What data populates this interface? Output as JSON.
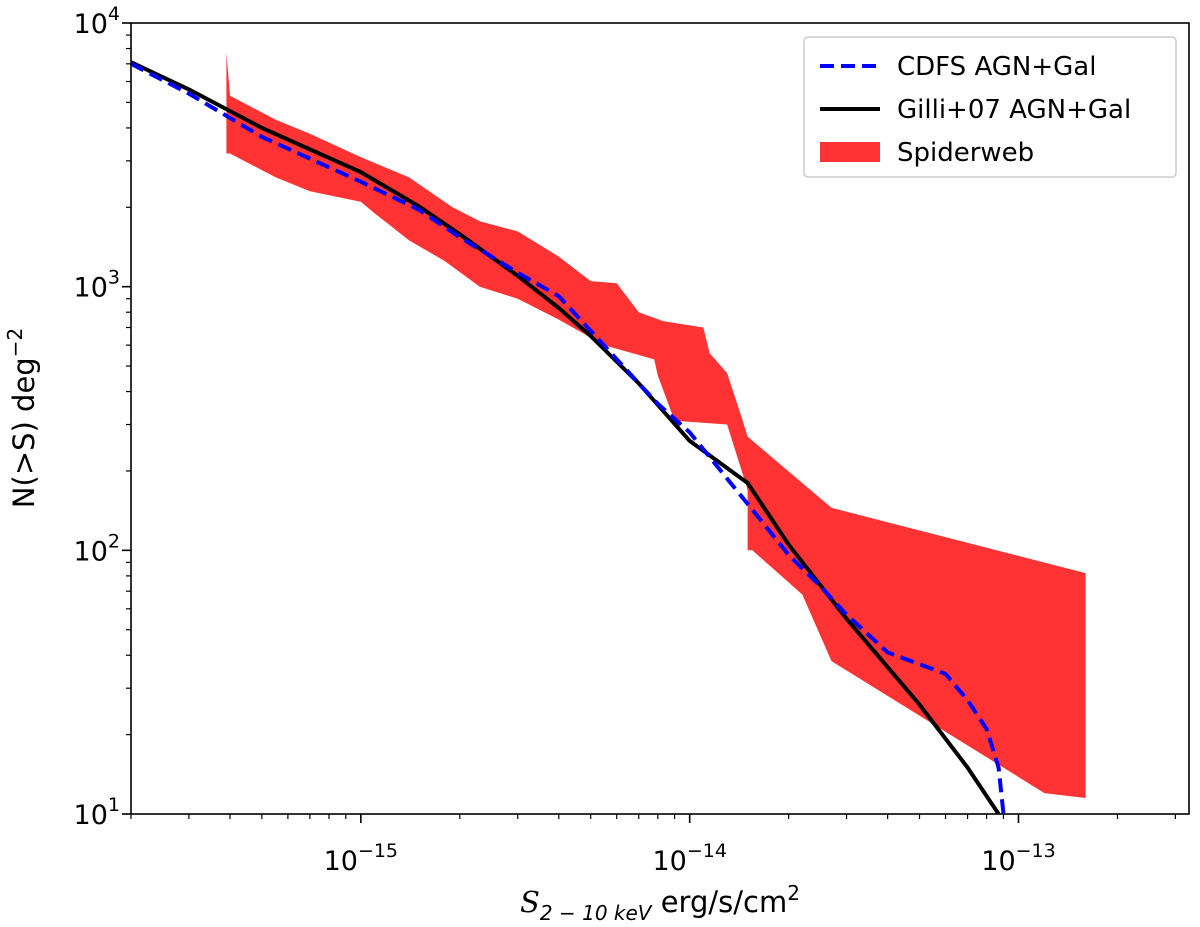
{
  "chart_data": {
    "type": "line",
    "scale": {
      "x": "log",
      "y": "log"
    },
    "xlim": [
      2e-16,
      3.3e-13
    ],
    "ylim": [
      10,
      10000
    ],
    "xlabel": {
      "symbol": "S",
      "subscript": "2 − 10 keV",
      "units": " erg/s/cm",
      "power": "2"
    },
    "ylabel": {
      "main": "N(>S) deg",
      "power": "−2"
    },
    "x_ticks": [
      {
        "value": 1e-15,
        "base": "10",
        "exp": "−15"
      },
      {
        "value": 1e-14,
        "base": "10",
        "exp": "−14"
      },
      {
        "value": 1e-13,
        "base": "10",
        "exp": "−13"
      }
    ],
    "y_ticks": [
      {
        "value": 10,
        "base": "10",
        "exp": "1"
      },
      {
        "value": 100,
        "base": "10",
        "exp": "2"
      },
      {
        "value": 1000,
        "base": "10",
        "exp": "3"
      },
      {
        "value": 10000,
        "base": "10",
        "exp": "4"
      }
    ],
    "legend": {
      "position": "top-right"
    },
    "series": [
      {
        "name": "CDFS AGN+Gal",
        "style": "dashed",
        "color": "#0000ff",
        "x": [
          2e-16,
          3e-16,
          5e-16,
          1e-15,
          1.5e-15,
          2e-15,
          3e-15,
          4e-15,
          5e-15,
          7e-15,
          8e-15,
          1e-14,
          1.5e-14,
          2e-14,
          2.5e-14,
          3e-14,
          4e-14,
          5e-14,
          6e-14,
          7e-14,
          8e-14,
          8.7e-14,
          9e-14
        ],
        "y": [
          7000,
          5400,
          3700,
          2500,
          1960,
          1540,
          1130,
          920,
          680,
          430,
          360,
          280,
          150,
          96,
          73,
          57,
          41,
          37,
          34,
          27,
          21,
          15,
          10
        ]
      },
      {
        "name": "Gilli+07 AGN+Gal",
        "style": "solid",
        "color": "#000000",
        "x": [
          2e-16,
          3e-16,
          5e-16,
          1e-15,
          1.5e-15,
          2e-15,
          3e-15,
          4e-15,
          5e-15,
          7e-15,
          1e-14,
          1.5e-14,
          2e-14,
          3e-14,
          5e-14,
          7e-14,
          8.7e-14
        ],
        "y": [
          7100,
          5600,
          4000,
          2720,
          2020,
          1580,
          1100,
          830,
          650,
          430,
          260,
          180,
          105,
          55,
          26,
          15,
          10
        ]
      },
      {
        "name": "Spiderweb",
        "style": "band",
        "color": "#ff3333",
        "upper": {
          "x": [
            3.9e-16,
            4e-16,
            5.5e-16,
            7e-16,
            1e-15,
            1.4e-15,
            1.9e-15,
            2.3e-15,
            3e-15,
            4e-15,
            5e-15,
            6e-15,
            7e-15,
            8.3e-15,
            1.1e-14,
            1.15e-14,
            1.3e-14,
            1.45e-14,
            1.5e-14,
            2.7e-14,
            1.6e-13
          ],
          "y": [
            7700,
            5300,
            4300,
            3800,
            3100,
            2600,
            2000,
            1770,
            1620,
            1300,
            1050,
            1030,
            800,
            740,
            700,
            560,
            470,
            310,
            270,
            145,
            82
          ]
        },
        "lower": {
          "x": [
            1.6e-13,
            1.2e-13,
            2.7e-14,
            2.2e-14,
            1.55e-14,
            1.5e-14,
            1.5e-14,
            1.3e-14,
            9e-15,
            8e-15,
            7.8e-15,
            5.5e-15,
            4e-15,
            3e-15,
            2.3e-15,
            1.8e-15,
            1.4e-15,
            1.1e-15,
            1e-15,
            7e-16,
            5.5e-16,
            4e-16,
            3.9e-16
          ],
          "y": [
            11.5,
            12,
            38,
            68,
            100,
            100,
            170,
            300,
            310,
            460,
            530,
            600,
            750,
            900,
            1000,
            1250,
            1500,
            1900,
            2100,
            2300,
            2600,
            3200,
            3200
          ]
        }
      }
    ]
  }
}
